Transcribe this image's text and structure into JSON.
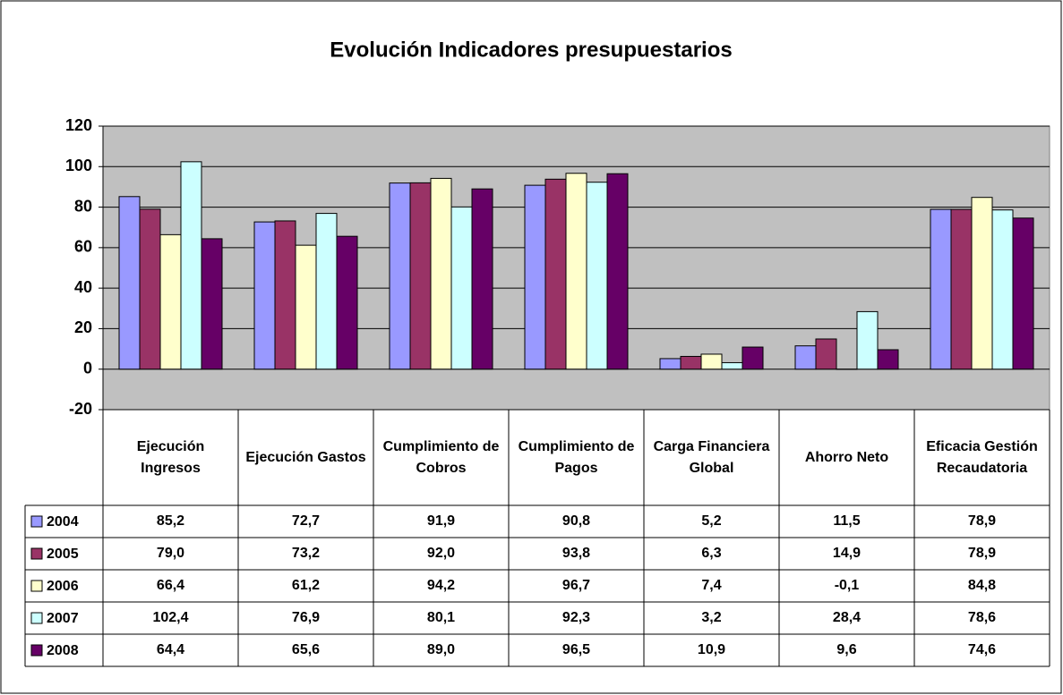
{
  "chart_data": {
    "type": "bar",
    "title": "Evolución Indicadores presupuestarios",
    "categories": [
      "Ejecución Ingresos",
      "Ejecución Gastos",
      "Cumplimiento de Cobros",
      "Cumplimiento de Pagos",
      "Carga Financiera Global",
      "Ahorro Neto",
      "Eficacia Gestión Recaudatoria"
    ],
    "series": [
      {
        "name": "2004",
        "color": "#9999ff",
        "values": [
          85.2,
          72.7,
          91.9,
          90.8,
          5.2,
          11.5,
          78.9
        ],
        "value_labels": [
          "85,2",
          "72,7",
          "91,9",
          "90,8",
          "5,2",
          "11,5",
          "78,9"
        ]
      },
      {
        "name": "2005",
        "color": "#993366",
        "values": [
          79.0,
          73.2,
          92.0,
          93.8,
          6.3,
          14.9,
          78.9
        ],
        "value_labels": [
          "79,0",
          "73,2",
          "92,0",
          "93,8",
          "6,3",
          "14,9",
          "78,9"
        ]
      },
      {
        "name": "2006",
        "color": "#ffffcc",
        "values": [
          66.4,
          61.2,
          94.2,
          96.7,
          7.4,
          -0.1,
          84.8
        ],
        "value_labels": [
          "66,4",
          "61,2",
          "94,2",
          "96,7",
          "7,4",
          "-0,1",
          "84,8"
        ]
      },
      {
        "name": "2007",
        "color": "#ccffff",
        "values": [
          102.4,
          76.9,
          80.1,
          92.3,
          3.2,
          28.4,
          78.6
        ],
        "value_labels": [
          "102,4",
          "76,9",
          "80,1",
          "92,3",
          "3,2",
          "28,4",
          "78,6"
        ]
      },
      {
        "name": "2008",
        "color": "#660066",
        "values": [
          64.4,
          65.6,
          89.0,
          96.5,
          10.9,
          9.6,
          74.6
        ],
        "value_labels": [
          "64,4",
          "65,6",
          "89,0",
          "96,5",
          "10,9",
          "9,6",
          "74,6"
        ]
      }
    ],
    "ylim": [
      -20,
      120
    ],
    "yticks": [
      -20,
      0,
      20,
      40,
      60,
      80,
      100,
      120
    ],
    "grid": true,
    "plot_background": "#c0c0c0"
  }
}
